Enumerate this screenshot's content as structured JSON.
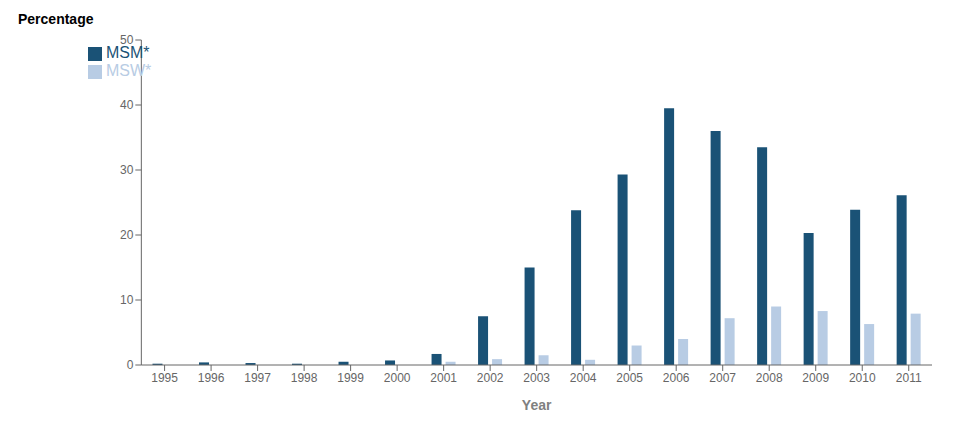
{
  "chart_data": {
    "type": "bar",
    "categories": [
      "1995",
      "1996",
      "1997",
      "1998",
      "1999",
      "2000",
      "2001",
      "2002",
      "2003",
      "2004",
      "2005",
      "2006",
      "2007",
      "2008",
      "2009",
      "2010",
      "2011"
    ],
    "series": [
      {
        "name": "MSM*",
        "color": "#1a5276",
        "values": [
          0.2,
          0.4,
          0.3,
          0.2,
          0.5,
          0.7,
          1.7,
          7.5,
          15.0,
          23.8,
          29.3,
          39.5,
          36.0,
          33.5,
          20.3,
          23.9,
          26.1
        ]
      },
      {
        "name": "MSW*",
        "color": "#b8cce4",
        "values": [
          0.0,
          0.0,
          0.0,
          0.0,
          0.0,
          0.0,
          0.5,
          0.9,
          1.5,
          0.8,
          3.0,
          4.0,
          7.2,
          9.0,
          8.3,
          6.3,
          7.9
        ]
      }
    ],
    "xlabel": "Year",
    "ylabel": "Percentage",
    "ylim": [
      0,
      50
    ],
    "yticks": [
      0,
      10,
      20,
      30,
      40,
      50
    ],
    "grid": false,
    "legend": "upper left"
  }
}
